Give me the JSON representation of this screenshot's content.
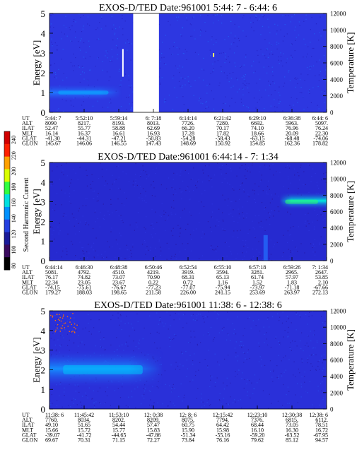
{
  "colorbar": {
    "label": "Second Harmonic Current",
    "ticks": [
      "80",
      "100",
      "120",
      "140",
      "160",
      "180",
      "200",
      "220",
      "240"
    ],
    "colors": [
      "#000000",
      "#3a0a5e",
      "#1a1a9a",
      "#2440e0",
      "#0090ff",
      "#00e0e0",
      "#30ff40",
      "#d8ff00",
      "#ffa000",
      "#ff2000",
      "#d00000"
    ]
  },
  "panels": [
    {
      "title": "EXOS-D/TED   Date:961001   5:44: 7 - 6:44: 6",
      "ylabel": "Energy [eV]",
      "ylabel_right": "Temperature [K]",
      "left_ticks": [
        "0",
        "1",
        "2",
        "3",
        "4",
        "5"
      ],
      "right_ticks": [
        "0",
        "2000",
        "4000",
        "6000",
        "8000",
        "10000",
        "12000"
      ],
      "row_labels": [
        "UT",
        "ALT",
        "ILAT",
        "MLT",
        "GLAT",
        "GLON"
      ],
      "columns": [
        [
          "5:44: 7",
          "8090",
          "52.47",
          "16.14",
          "-41.30",
          "145.67"
        ],
        [
          "5:52:10",
          "8217.",
          "55.77",
          "16.37",
          "-44.31",
          "146.06"
        ],
        [
          "5:59:14",
          "8193.",
          "58.88",
          "16.61",
          "-47.21",
          "146.55"
        ],
        [
          "6: 7:18",
          "8013.",
          "62.69",
          "16.93",
          "-50.83",
          "147.43"
        ],
        [
          "6:14:14",
          "7726.",
          "66.20",
          "17.28",
          "-54.28",
          "148.69"
        ],
        [
          "6:21:42",
          "7280.",
          "70.17",
          "17.82",
          "-58.43",
          "150.92"
        ],
        [
          "6:29:10",
          "6692.",
          "74.10",
          "18.66",
          "-63.15",
          "154.85"
        ],
        [
          "6:36:38",
          "5963.",
          "76.96",
          "20.09",
          "-68.48",
          "162.36"
        ],
        [
          "6:44: 6",
          "5097.",
          "76.24",
          "22.30",
          "-74.06",
          "178.82"
        ]
      ]
    },
    {
      "title": "EXOS-D/TED   Date:961001   6:44:14 - 7: 1:34",
      "ylabel": "Energy [eV]",
      "ylabel_right": "Temperature [K]",
      "left_ticks": [
        "0",
        "1",
        "2",
        "3",
        "4",
        "5"
      ],
      "right_ticks": [
        "0",
        "2000",
        "4000",
        "6000",
        "8000",
        "10000",
        "12000"
      ],
      "row_labels": [
        "UT",
        "ALT",
        "ILAT",
        "MLT",
        "GLAT",
        "GLON"
      ],
      "columns": [
        [
          "6:44:14",
          "5081.",
          "76.17",
          "22.34",
          "-74.15",
          "179.27"
        ],
        [
          "6:46:30",
          "4792.",
          "74.82",
          "23.05",
          "-75.61",
          "188.03"
        ],
        [
          "6:48:38",
          "4510.",
          "73.07",
          "23.67",
          "-76.67",
          "198.65"
        ],
        [
          "6:50:46",
          "4219.",
          "70.90",
          "0.22",
          "-77.23",
          "211.58"
        ],
        [
          "6:52:54",
          "3919.",
          "68.31",
          "0.72",
          "-77.07",
          "226.00"
        ],
        [
          "6:55:10",
          "3594.",
          "65.13",
          "1.16",
          "-75.94",
          "241.15"
        ],
        [
          "6:57:18",
          "3281.",
          "61.74",
          "1.52",
          "-73.97",
          "253.69"
        ],
        [
          "6:59:26",
          "2965.",
          "57.97",
          "1.83",
          "-71.18",
          "263.97"
        ],
        [
          "7: 1:34",
          "2647.",
          "53.85",
          "2.10",
          "-67.66",
          "272.13"
        ]
      ]
    },
    {
      "title": "EXOS-D/TED   Date:961001   11:38: 6 - 12:38: 6",
      "ylabel": "Energy [eV]",
      "ylabel_right": "Temperature [K]",
      "left_ticks": [
        "0",
        "1",
        "2",
        "3",
        "4",
        "5"
      ],
      "right_ticks": [
        "0",
        "2000",
        "4000",
        "6000",
        "8000",
        "10000",
        "12000"
      ],
      "row_labels": [
        "UT",
        "ALT",
        "ILAT",
        "MLT",
        "GLAT",
        "GLON"
      ],
      "columns": [
        [
          "11:38: 6",
          "7760.",
          "49.10",
          "15.66",
          "-39.07",
          "69.67"
        ],
        [
          "11:45:42",
          "8034.",
          "51.65",
          "15.72",
          "-41.72",
          "70.31"
        ],
        [
          "11:53:10",
          "8202.",
          "54.44",
          "15.77",
          "-44.65",
          "71.15"
        ],
        [
          "12: 0:38",
          "8209.",
          "57.47",
          "15.83",
          "-47.86",
          "72.27"
        ],
        [
          "12: 8: 6",
          "8075.",
          "60.75",
          "15.90",
          "-51.34",
          "73.84"
        ],
        [
          "12:15:42",
          "7794.",
          "64.42",
          "15.98",
          "-55.16",
          "76.16"
        ],
        [
          "12:23:10",
          "7376.",
          "68.44",
          "16.10",
          "-59.20",
          "79.62"
        ],
        [
          "12:30:38",
          "6815.",
          "73.05",
          "16.30",
          "-63.52",
          "85.12"
        ],
        [
          "12:38: 6",
          "6112.",
          "78.51",
          "16.72",
          "-67.95",
          "94.57"
        ]
      ]
    }
  ],
  "chart_data": [
    {
      "type": "heatmap",
      "title": "EXOS-D/TED   Date:961001   5:44: 7 - 6:44: 6",
      "xlabel": "UT",
      "ylabel": "Energy [eV]",
      "ylabel_right": "Temperature [K]",
      "ylim": [
        0,
        5
      ],
      "ylim_right": [
        0,
        12000
      ],
      "x_ticks": [
        "5:44: 7",
        "5:52:10",
        "5:59:14",
        "6: 7:18",
        "6:14:14",
        "6:21:42",
        "6:29:10",
        "6:36:38",
        "6:44: 6"
      ],
      "background_level": 140,
      "features": [
        {
          "kind": "band",
          "t_start": 0.0,
          "t_end": 0.26,
          "e_low": 0.6,
          "e_high": 1.4,
          "e_peak": 1.0,
          "level": 155
        },
        {
          "kind": "data_gap",
          "t_start": 0.302,
          "t_end": 0.395
        },
        {
          "kind": "spike",
          "t": 0.265,
          "e_low": 1.8,
          "e_high": 3.2
        },
        {
          "kind": "spike",
          "t": 0.592,
          "e_low": 2.8,
          "e_high": 3.0
        }
      ]
    },
    {
      "type": "heatmap",
      "title": "EXOS-D/TED   Date:961001   6:44:14 - 7: 1:34",
      "xlabel": "UT",
      "ylabel": "Energy [eV]",
      "ylabel_right": "Temperature [K]",
      "ylim": [
        0,
        5
      ],
      "ylim_right": [
        0,
        12000
      ],
      "x_ticks": [
        "6:44:14",
        "6:46:30",
        "6:48:38",
        "6:50:46",
        "6:52:54",
        "6:55:10",
        "6:57:18",
        "6:59:26",
        "7: 1:34"
      ],
      "background_level": 130,
      "features": [
        {
          "kind": "band",
          "t_start": 0.83,
          "t_end": 1.0,
          "e_low": 2.6,
          "e_high": 3.5,
          "e_peak": 3.0,
          "level": 185
        },
        {
          "kind": "column",
          "t": 0.78,
          "e_low": 0.0,
          "e_high": 1.3,
          "level": 150
        }
      ]
    },
    {
      "type": "heatmap",
      "title": "EXOS-D/TED   Date:961001   11:38: 6 - 12:38: 6",
      "xlabel": "UT",
      "ylabel": "Energy [eV]",
      "ylabel_right": "Temperature [K]",
      "ylim": [
        0,
        5
      ],
      "ylim_right": [
        0,
        12000
      ],
      "x_ticks": [
        "11:38: 6",
        "11:45:42",
        "11:53:10",
        "12: 0:38",
        "12: 8: 6",
        "12:15:42",
        "12:23:10",
        "12:30:38",
        "12:38: 6"
      ],
      "background_level": 135,
      "features": [
        {
          "kind": "band",
          "t_start": 0.0,
          "t_end": 0.41,
          "e_low": 1.1,
          "e_high": 3.0,
          "e_peak": 2.0,
          "level": 160
        },
        {
          "kind": "scatter_dots",
          "t_start": 0.0,
          "t_end": 0.1,
          "e_low": 3.9,
          "e_high": 4.9,
          "level": 230
        }
      ]
    }
  ]
}
